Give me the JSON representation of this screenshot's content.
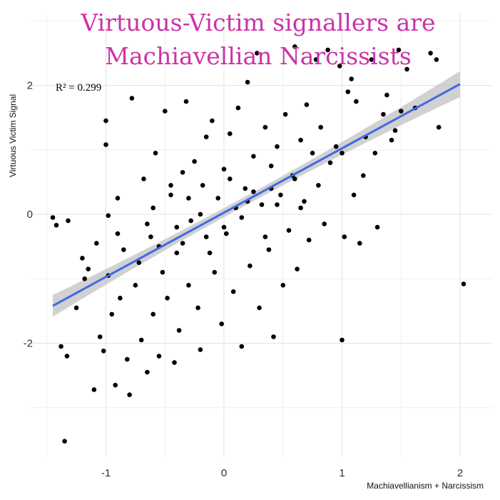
{
  "chart_data": {
    "type": "scatter",
    "title_lines": [
      "Virtuous-Victim signallers are",
      "Machiavellian Narcissists"
    ],
    "xlabel": "Machiavellianism + Narcissism",
    "ylabel": "Virtuous Victim Signal",
    "annotation": "R² = 0.299",
    "xlim": [
      -1.5,
      2.1
    ],
    "ylim": [
      -3.6,
      2.8
    ],
    "x_ticks": [
      -1,
      0,
      1,
      2
    ],
    "y_ticks": [
      -2,
      0,
      2
    ],
    "grid": true,
    "trendline": {
      "x": [
        -1.45,
        2.0
      ],
      "y": [
        -1.42,
        2.02
      ],
      "color": "#4169e1",
      "ci_color": "#bdbdbd"
    },
    "point_color": "#000000",
    "title_color": "#cc33a6",
    "points": [
      [
        -1.45,
        -0.05
      ],
      [
        -1.42,
        -0.17
      ],
      [
        -1.38,
        -2.05
      ],
      [
        -1.35,
        -3.52
      ],
      [
        -1.33,
        -2.2
      ],
      [
        -1.32,
        -0.1
      ],
      [
        -1.25,
        -1.45
      ],
      [
        -1.2,
        -0.68
      ],
      [
        -1.18,
        -1.0
      ],
      [
        -1.15,
        -0.85
      ],
      [
        -1.1,
        -2.72
      ],
      [
        -1.08,
        -0.45
      ],
      [
        -1.05,
        -1.9
      ],
      [
        -1.02,
        -2.12
      ],
      [
        -1.0,
        1.45
      ],
      [
        -1.0,
        1.08
      ],
      [
        -0.98,
        -0.95
      ],
      [
        -0.98,
        -0.02
      ],
      [
        -0.95,
        -1.55
      ],
      [
        -0.92,
        -2.65
      ],
      [
        -0.9,
        0.25
      ],
      [
        -0.88,
        -1.3
      ],
      [
        -0.85,
        -0.55
      ],
      [
        -0.82,
        -2.25
      ],
      [
        -0.8,
        -2.8
      ],
      [
        -0.78,
        1.8
      ],
      [
        -0.75,
        -1.1
      ],
      [
        -0.72,
        -0.75
      ],
      [
        -0.7,
        -1.95
      ],
      [
        -0.68,
        0.55
      ],
      [
        -0.65,
        -2.45
      ],
      [
        -0.62,
        -0.35
      ],
      [
        -0.6,
        -1.55
      ],
      [
        -0.58,
        0.95
      ],
      [
        -0.55,
        -2.2
      ],
      [
        -0.52,
        -0.9
      ],
      [
        -0.5,
        1.6
      ],
      [
        -0.48,
        -1.3
      ],
      [
        -0.45,
        0.3
      ],
      [
        -0.42,
        -2.3
      ],
      [
        -0.4,
        -0.6
      ],
      [
        -0.38,
        -1.8
      ],
      [
        -0.35,
        0.65
      ],
      [
        -0.32,
        1.75
      ],
      [
        -0.3,
        -1.1
      ],
      [
        -0.28,
        -0.1
      ],
      [
        -0.25,
        0.82
      ],
      [
        -0.22,
        -1.45
      ],
      [
        -0.2,
        -2.1
      ],
      [
        -0.18,
        0.45
      ],
      [
        -0.15,
        1.2
      ],
      [
        -0.12,
        -0.6
      ],
      [
        -0.1,
        1.45
      ],
      [
        -0.08,
        -0.9
      ],
      [
        -0.05,
        0.25
      ],
      [
        -0.02,
        -1.7
      ],
      [
        0.0,
        0.7
      ],
      [
        0.02,
        -0.3
      ],
      [
        0.05,
        1.25
      ],
      [
        0.08,
        -1.2
      ],
      [
        0.1,
        0.1
      ],
      [
        0.12,
        1.65
      ],
      [
        0.15,
        -2.05
      ],
      [
        0.18,
        0.4
      ],
      [
        0.2,
        2.05
      ],
      [
        0.22,
        -0.8
      ],
      [
        0.25,
        0.9
      ],
      [
        0.28,
        2.5
      ],
      [
        0.3,
        -1.45
      ],
      [
        0.32,
        0.15
      ],
      [
        0.35,
        1.35
      ],
      [
        0.38,
        -0.55
      ],
      [
        0.4,
        0.75
      ],
      [
        0.42,
        -1.9
      ],
      [
        0.45,
        1.05
      ],
      [
        0.48,
        0.3
      ],
      [
        0.5,
        -1.1
      ],
      [
        0.52,
        1.55
      ],
      [
        0.55,
        -0.25
      ],
      [
        0.58,
        0.6
      ],
      [
        0.6,
        2.6
      ],
      [
        0.62,
        -0.85
      ],
      [
        0.65,
        1.15
      ],
      [
        0.68,
        0.2
      ],
      [
        0.7,
        1.7
      ],
      [
        0.72,
        -0.4
      ],
      [
        0.75,
        0.95
      ],
      [
        0.78,
        2.4
      ],
      [
        0.8,
        0.45
      ],
      [
        0.82,
        1.35
      ],
      [
        0.85,
        -0.15
      ],
      [
        0.88,
        2.55
      ],
      [
        0.9,
        0.8
      ],
      [
        0.95,
        1.05
      ],
      [
        0.98,
        2.3
      ],
      [
        1.0,
        -1.95
      ],
      [
        1.0,
        0.95
      ],
      [
        1.02,
        -0.35
      ],
      [
        1.05,
        1.9
      ],
      [
        1.08,
        2.1
      ],
      [
        1.1,
        0.3
      ],
      [
        1.12,
        1.75
      ],
      [
        1.15,
        -0.45
      ],
      [
        1.18,
        0.6
      ],
      [
        1.2,
        1.2
      ],
      [
        1.25,
        2.4
      ],
      [
        1.28,
        0.95
      ],
      [
        1.3,
        -0.2
      ],
      [
        1.35,
        1.55
      ],
      [
        1.38,
        1.85
      ],
      [
        1.42,
        1.15
      ],
      [
        1.45,
        1.3
      ],
      [
        1.48,
        2.55
      ],
      [
        1.5,
        1.6
      ],
      [
        1.55,
        2.25
      ],
      [
        1.62,
        1.65
      ],
      [
        1.75,
        2.5
      ],
      [
        1.8,
        2.4
      ],
      [
        1.82,
        1.35
      ],
      [
        2.03,
        -1.08
      ],
      [
        -0.9,
        -0.3
      ],
      [
        -0.6,
        0.1
      ],
      [
        -0.4,
        -0.2
      ],
      [
        -0.2,
        0.0
      ],
      [
        0.0,
        -0.2
      ],
      [
        0.2,
        0.2
      ],
      [
        0.4,
        0.4
      ],
      [
        0.6,
        0.55
      ],
      [
        -0.35,
        -0.45
      ],
      [
        0.15,
        -0.05
      ],
      [
        -0.55,
        -0.5
      ],
      [
        -0.3,
        0.25
      ],
      [
        0.25,
        0.35
      ],
      [
        0.45,
        0.15
      ],
      [
        -0.15,
        -0.35
      ],
      [
        0.05,
        0.55
      ],
      [
        -0.45,
        0.45
      ],
      [
        0.35,
        -0.35
      ],
      [
        -0.65,
        -0.15
      ],
      [
        0.65,
        0.1
      ]
    ]
  }
}
